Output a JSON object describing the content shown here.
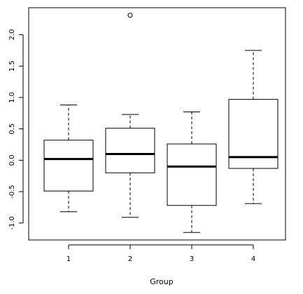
{
  "chart_data": {
    "type": "box",
    "title": "",
    "xlabel": "Group",
    "ylabel": "",
    "categories": [
      "1",
      "2",
      "3",
      "4"
    ],
    "ylim": [
      -1.27,
      2.43
    ],
    "y_ticks": [
      "-1.0",
      "-0.5",
      "0.0",
      "0.5",
      "1.0",
      "1.5",
      "2.0"
    ],
    "y_tick_values": [
      -1.0,
      -0.5,
      0.0,
      0.5,
      1.0,
      1.5,
      2.0
    ],
    "boxes": [
      {
        "category": "1",
        "whisker_low": -0.82,
        "q1": -0.49,
        "median": 0.02,
        "q3": 0.32,
        "whisker_high": 0.88,
        "outliers": []
      },
      {
        "category": "2",
        "whisker_low": -0.91,
        "q1": -0.2,
        "median": 0.1,
        "q3": 0.51,
        "whisker_high": 0.73,
        "outliers": [
          2.31
        ]
      },
      {
        "category": "3",
        "whisker_low": -1.15,
        "q1": -0.72,
        "median": -0.1,
        "q3": 0.26,
        "whisker_high": 0.77,
        "outliers": []
      },
      {
        "category": "4",
        "whisker_low": -0.69,
        "q1": -0.13,
        "median": 0.05,
        "q3": 0.97,
        "whisker_high": 1.75,
        "outliers": []
      }
    ],
    "grid": false,
    "legend": "none"
  }
}
